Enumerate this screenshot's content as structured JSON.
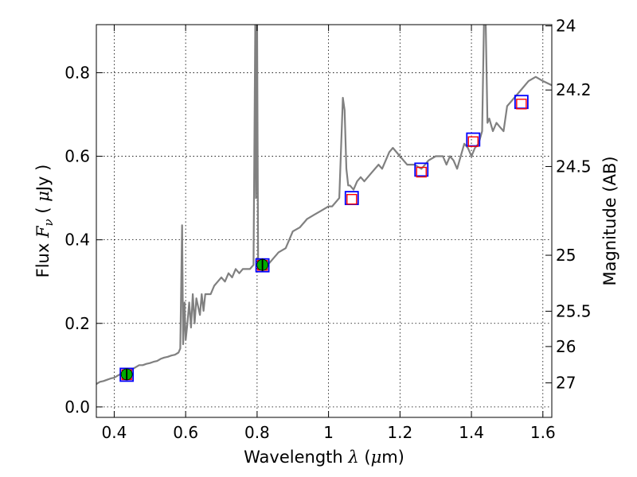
{
  "chart_data": {
    "type": "line",
    "xlabel": {
      "prefix": "Wavelength ",
      "symbol": "λ",
      "unit_open": " (",
      "unit_symbol": "μ",
      "unit_rest": "m)"
    },
    "ylabel": {
      "prefix": "Flux ",
      "symbol": "F",
      "sub": "ν",
      "unit_open": " ( ",
      "unit_symbol": "μ",
      "unit_rest": "Jy )"
    },
    "y2label": "Magnitude (AB)",
    "xlim": [
      0.35,
      1.625
    ],
    "ylim": [
      -0.025,
      0.915
    ],
    "x_ticks": [
      0.4,
      0.6,
      0.8,
      1.0,
      1.2,
      1.4,
      1.6
    ],
    "x_tick_labels": [
      "0.4",
      "0.6",
      "0.8",
      "1",
      "1.2",
      "1.4",
      "1.6"
    ],
    "y_ticks": [
      0.0,
      0.2,
      0.4,
      0.6,
      0.8
    ],
    "y_tick_labels": [
      "0.0",
      "0.2",
      "0.4",
      "0.6",
      "0.8"
    ],
    "y2_ticks": [
      {
        "mag": 24,
        "label": "24"
      },
      {
        "mag": 24.2,
        "label": "24.2"
      },
      {
        "mag": 24.5,
        "label": "24.5"
      },
      {
        "mag": 25,
        "label": "25"
      },
      {
        "mag": 25.5,
        "label": "25.5"
      },
      {
        "mag": 26,
        "label": "26"
      },
      {
        "mag": 27,
        "label": "27"
      }
    ],
    "grid": true,
    "colors": {
      "model_line": "#808080",
      "observed_box": "#0000ff",
      "model_box": "#ff0000",
      "detection_marker": "#00aa00",
      "grid": "#000000"
    },
    "series": [
      {
        "style": "line",
        "x": [
          0.35,
          0.36,
          0.37,
          0.38,
          0.39,
          0.4,
          0.41,
          0.42,
          0.43,
          0.44,
          0.45,
          0.46,
          0.47,
          0.48,
          0.49,
          0.5,
          0.51,
          0.52,
          0.53,
          0.54,
          0.55,
          0.56,
          0.57,
          0.58,
          0.585,
          0.59,
          0.593,
          0.597,
          0.6,
          0.605,
          0.61,
          0.615,
          0.62,
          0.625,
          0.63,
          0.64,
          0.645,
          0.65,
          0.655,
          0.66,
          0.67,
          0.68,
          0.69,
          0.7,
          0.71,
          0.72,
          0.73,
          0.74,
          0.75,
          0.76,
          0.77,
          0.78,
          0.79,
          0.795,
          0.797,
          0.8,
          0.803,
          0.805,
          0.81,
          0.82,
          0.83,
          0.84,
          0.85,
          0.86,
          0.88,
          0.9,
          0.92,
          0.94,
          0.96,
          0.98,
          1.0,
          1.01,
          1.02,
          1.03,
          1.04,
          1.045,
          1.05,
          1.055,
          1.06,
          1.07,
          1.08,
          1.09,
          1.1,
          1.12,
          1.14,
          1.15,
          1.16,
          1.17,
          1.18,
          1.2,
          1.22,
          1.24,
          1.26,
          1.28,
          1.3,
          1.32,
          1.33,
          1.34,
          1.35,
          1.36,
          1.37,
          1.38,
          1.39,
          1.4,
          1.41,
          1.42,
          1.43,
          1.435,
          1.44,
          1.445,
          1.45,
          1.46,
          1.47,
          1.48,
          1.49,
          1.5,
          1.52,
          1.54,
          1.56,
          1.58,
          1.6,
          1.625
        ],
        "y": [
          0.055,
          0.06,
          0.062,
          0.065,
          0.068,
          0.07,
          0.075,
          0.08,
          0.085,
          0.085,
          0.09,
          0.095,
          0.1,
          0.1,
          0.103,
          0.105,
          0.108,
          0.11,
          0.115,
          0.118,
          0.12,
          0.123,
          0.125,
          0.13,
          0.14,
          0.435,
          0.15,
          0.25,
          0.16,
          0.2,
          0.25,
          0.19,
          0.27,
          0.2,
          0.26,
          0.22,
          0.27,
          0.23,
          0.27,
          0.27,
          0.27,
          0.29,
          0.3,
          0.31,
          0.3,
          0.32,
          0.31,
          0.33,
          0.32,
          0.33,
          0.33,
          0.33,
          0.34,
          0.92,
          0.5,
          0.92,
          0.33,
          0.34,
          0.33,
          0.34,
          0.34,
          0.35,
          0.36,
          0.37,
          0.38,
          0.42,
          0.43,
          0.45,
          0.46,
          0.47,
          0.48,
          0.48,
          0.49,
          0.5,
          0.74,
          0.71,
          0.57,
          0.53,
          0.53,
          0.52,
          0.54,
          0.55,
          0.54,
          0.56,
          0.58,
          0.57,
          0.59,
          0.61,
          0.62,
          0.6,
          0.58,
          0.58,
          0.57,
          0.59,
          0.6,
          0.6,
          0.58,
          0.6,
          0.59,
          0.57,
          0.6,
          0.63,
          0.62,
          0.6,
          0.62,
          0.63,
          0.66,
          0.92,
          0.92,
          0.68,
          0.69,
          0.66,
          0.68,
          0.67,
          0.66,
          0.72,
          0.74,
          0.76,
          0.78,
          0.79,
          0.78,
          0.77
        ]
      },
      {
        "style": "markers",
        "marker": "square-blue",
        "x": [
          0.435,
          0.815,
          1.065,
          1.26,
          1.405,
          1.54
        ],
        "y": [
          0.077,
          0.339,
          0.5,
          0.568,
          0.64,
          0.73
        ]
      },
      {
        "style": "markers",
        "marker": "square-red",
        "x": [
          0.435,
          0.815,
          1.065,
          1.26,
          1.405,
          1.54
        ],
        "y": [
          0.077,
          0.339,
          0.497,
          0.562,
          0.635,
          0.725
        ]
      },
      {
        "style": "markers",
        "marker": "circle-green-errorbar",
        "x": [
          0.435,
          0.815
        ],
        "y": [
          0.078,
          0.34
        ],
        "yerr": [
          0.013,
          0.015
        ]
      }
    ]
  }
}
